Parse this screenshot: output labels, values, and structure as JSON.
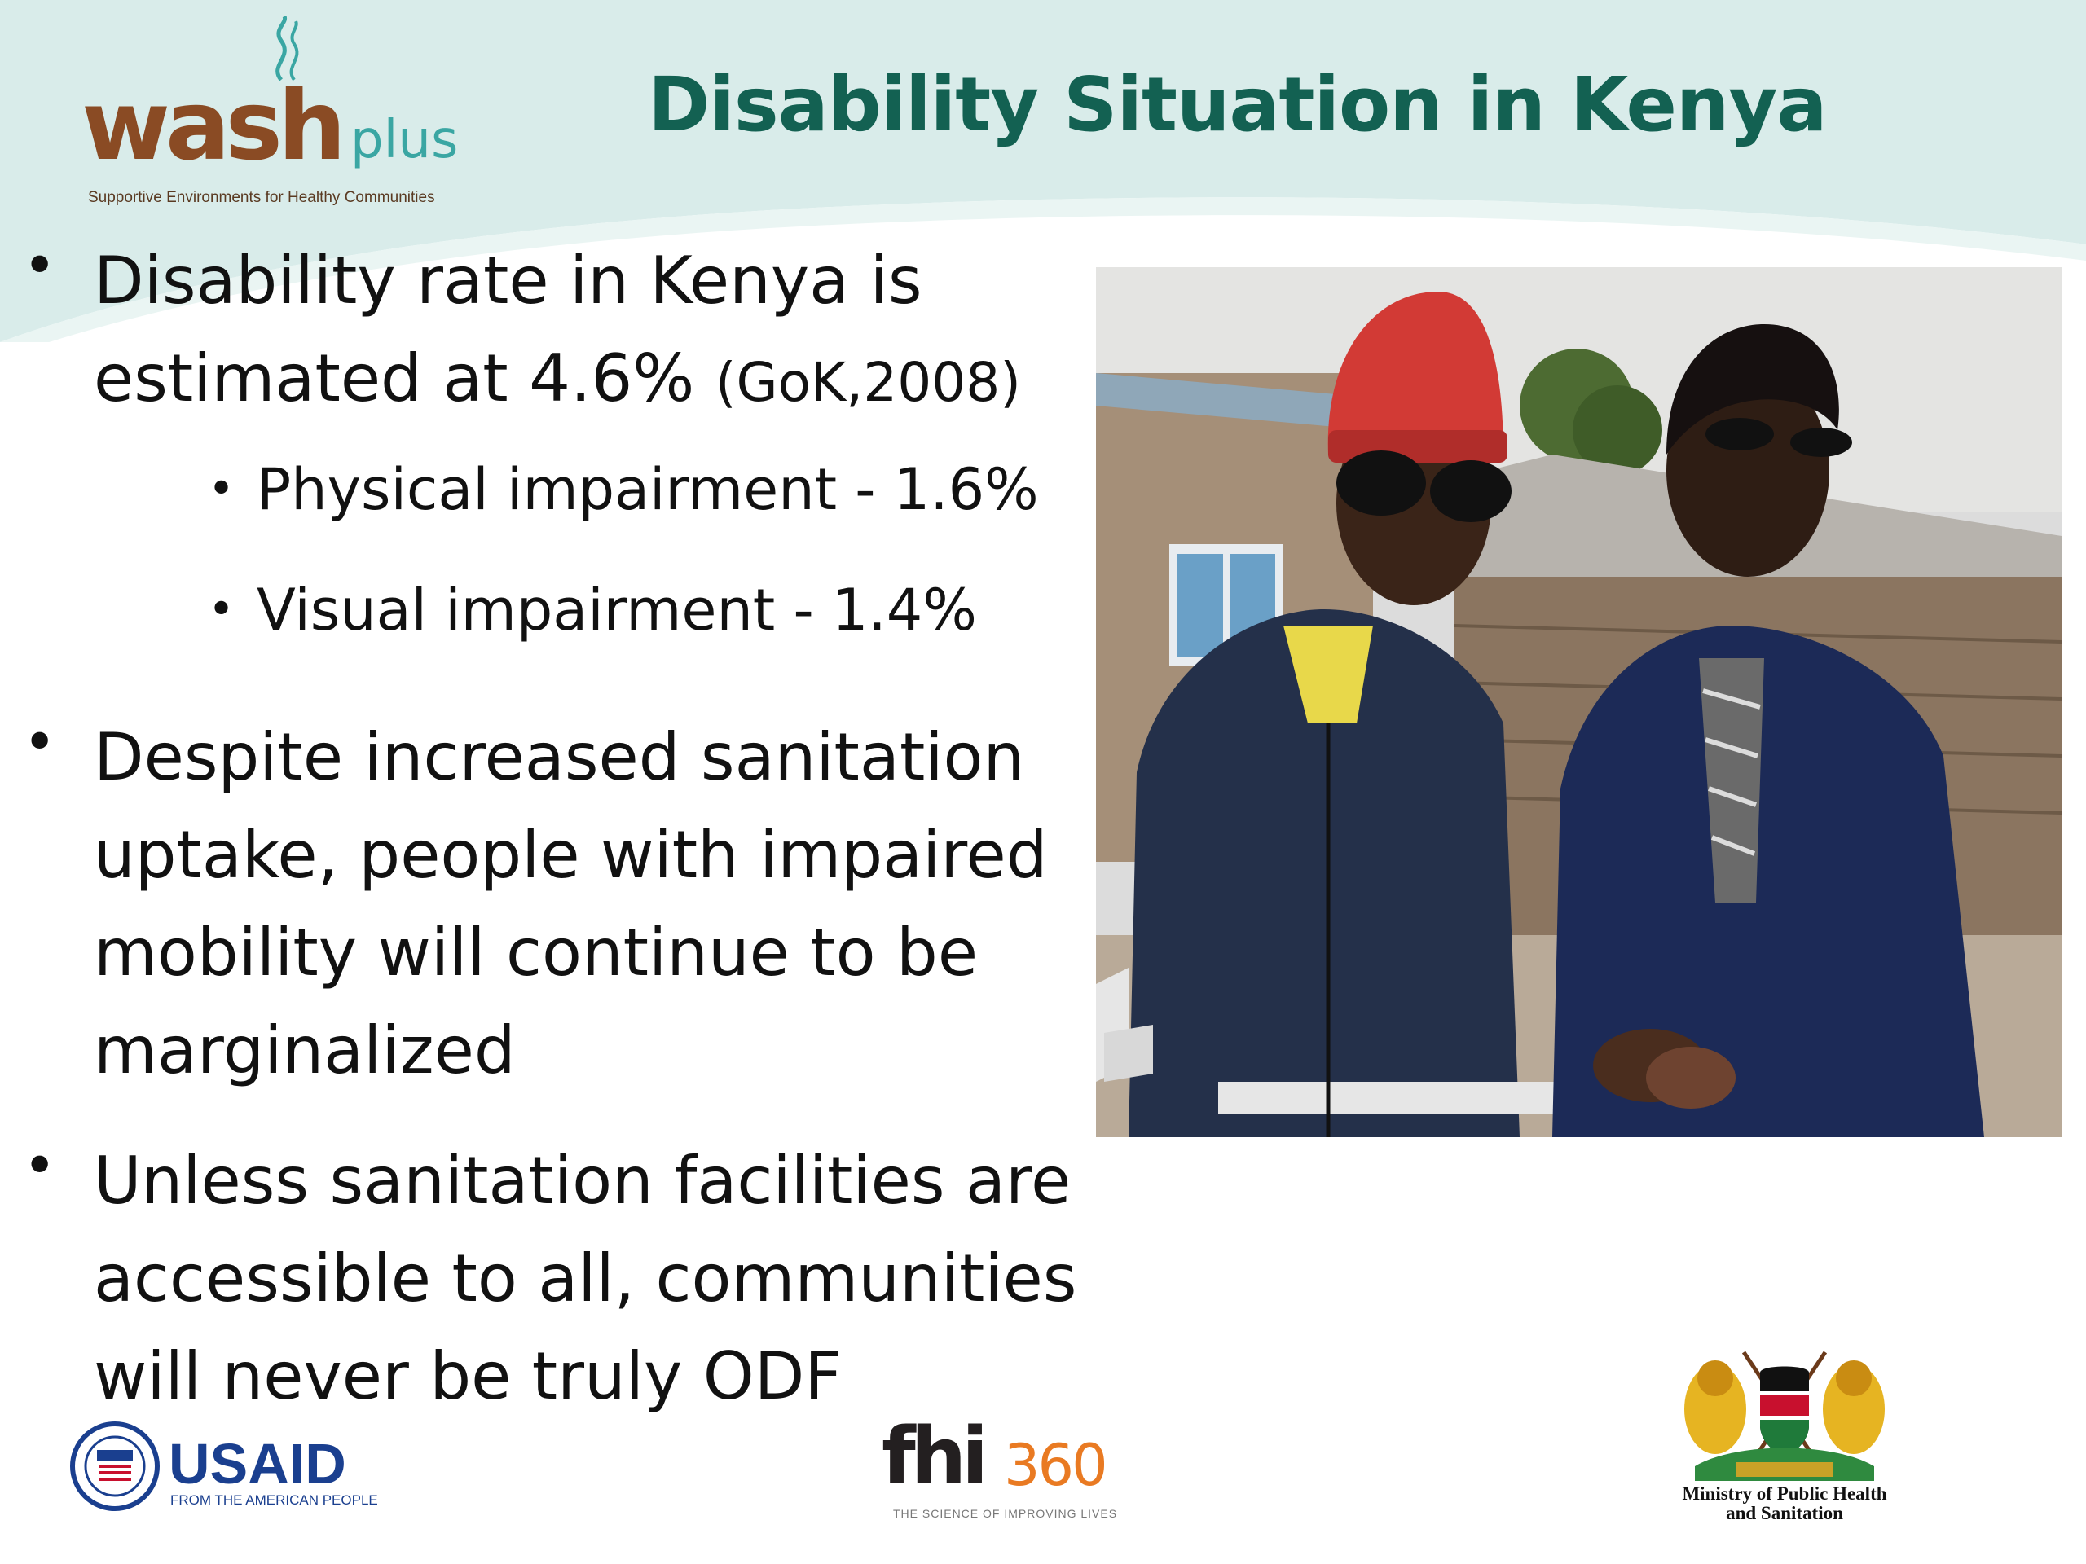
{
  "slide": {
    "title": "Disability Situation in Kenya"
  },
  "logos": {
    "washplus": {
      "word": "wash",
      "plus": "plus",
      "tagline": "Supportive Environments for Healthy Communities"
    },
    "usaid": {
      "word": "USAID",
      "subtitle": "FROM THE AMERICAN PEOPLE"
    },
    "fhi360": {
      "word": "fhi",
      "number": "360",
      "subtitle": "THE SCIENCE OF IMPROVING LIVES"
    },
    "ministry": {
      "line1": "Ministry of Public Health",
      "line2": "and Sanitation"
    }
  },
  "bullets": {
    "b1": {
      "text": "Disability rate in Kenya is estimated at 4.6% ",
      "citation": "(GoK,2008)",
      "sub1": "Physical impairment - 1.6%",
      "sub2": "Visual impairment - 1.4%"
    },
    "b2": {
      "text": "Despite increased sanitation uptake, people with impaired mobility will continue to be marginalized"
    },
    "b3": {
      "text": "Unless sanitation facilities are accessible to all, communities will never be truly ODF"
    }
  },
  "colors": {
    "title": "#136152",
    "header_band": "#d9ecea",
    "wash_brown": "#8a4b24",
    "plus_teal": "#3aa6a3",
    "usaid_blue": "#1a3f8f",
    "fhi_orange": "#e97a22"
  }
}
